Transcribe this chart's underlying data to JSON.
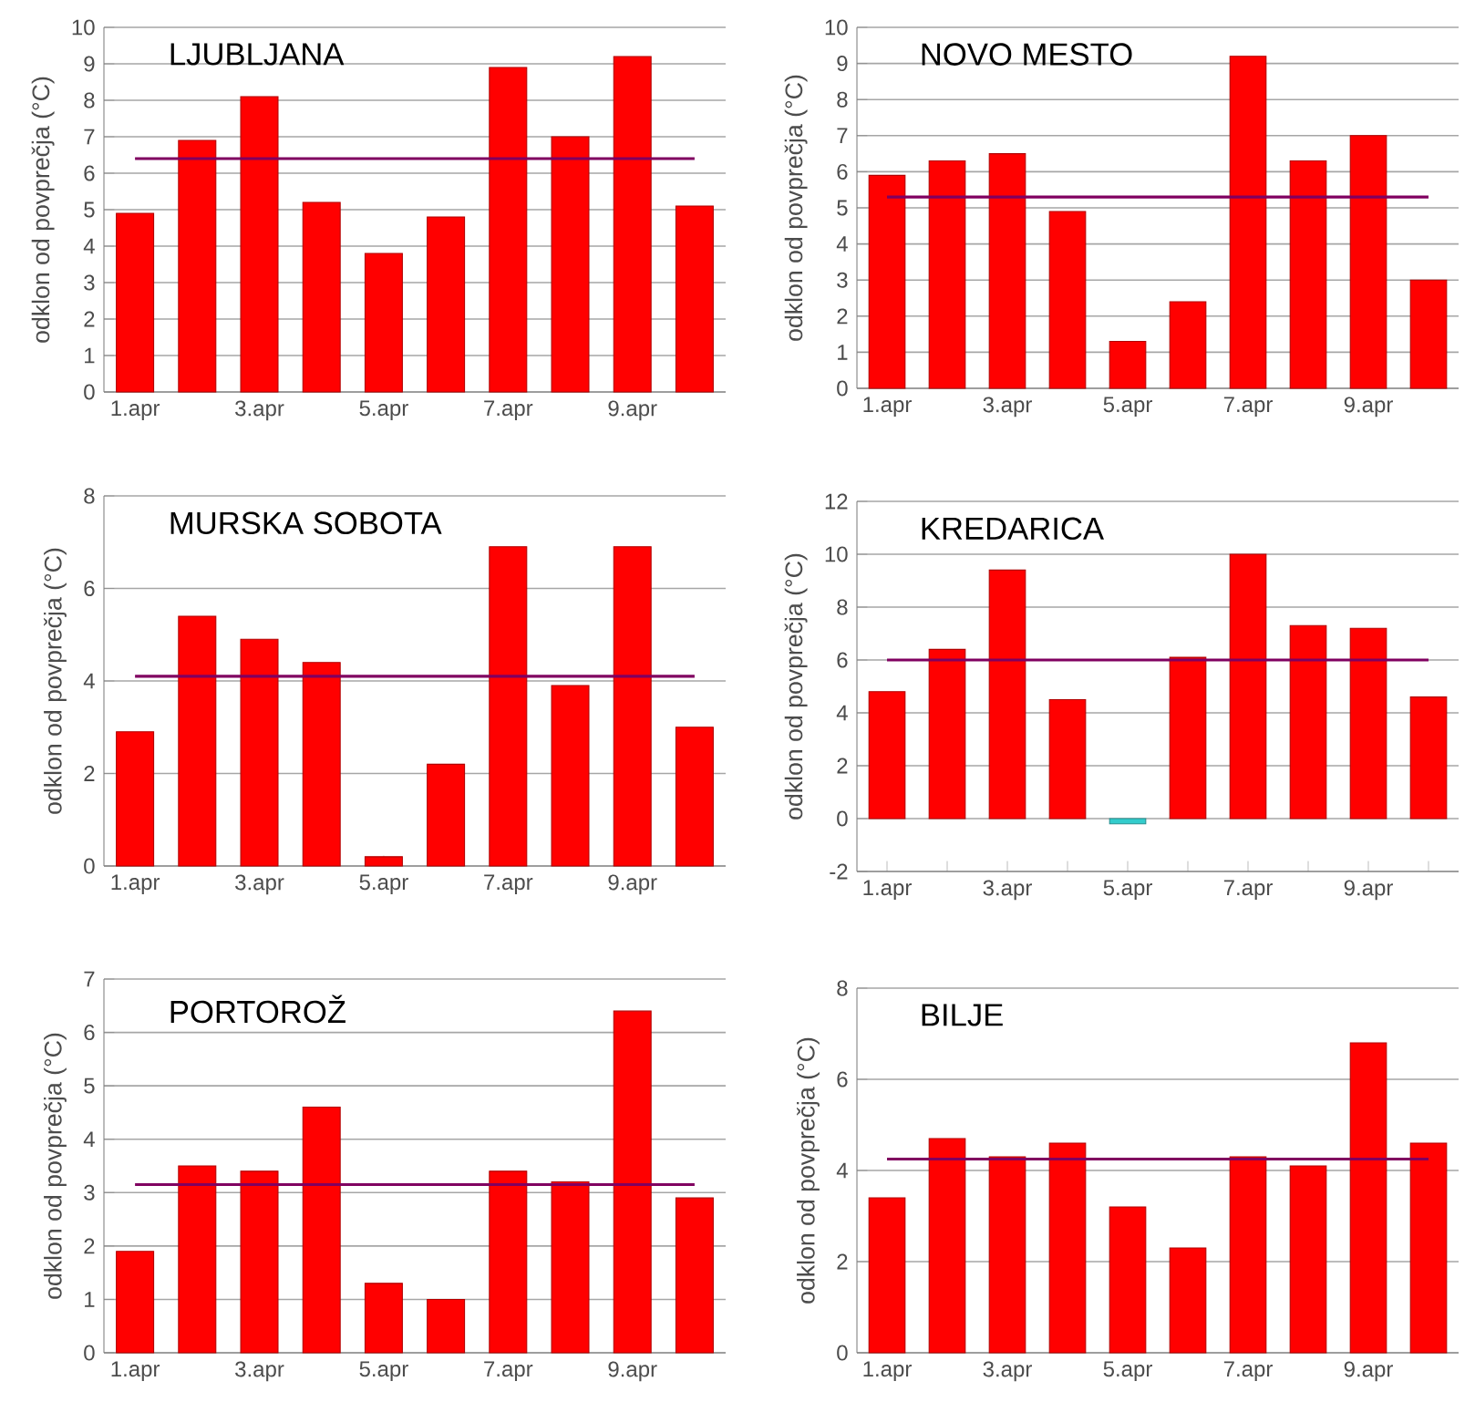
{
  "chart_data": [
    {
      "type": "bar",
      "title": "LJUBLJANA",
      "ylabel": "odklon od povprečja (°C)",
      "categories": [
        "1.apr",
        null,
        "3.apr",
        null,
        "5.apr",
        null,
        "7.apr",
        null,
        "9.apr",
        null
      ],
      "values": [
        4.9,
        6.9,
        8.1,
        5.2,
        3.8,
        4.8,
        8.9,
        7.0,
        9.2,
        5.1
      ],
      "color": "#ff0000",
      "ylim": [
        0,
        10
      ],
      "yticks": [
        0,
        1,
        2,
        3,
        4,
        5,
        6,
        7,
        8,
        9,
        10
      ],
      "grid": "y",
      "ref_lines": [
        {
          "axis": "y",
          "value": 6.4,
          "color": "#800060"
        }
      ]
    },
    {
      "type": "bar",
      "title": "NOVO MESTO",
      "ylabel": "odklon od povprečja (°C)",
      "categories": [
        "1.apr",
        null,
        "3.apr",
        null,
        "5.apr",
        null,
        "7.apr",
        null,
        "9.apr",
        null
      ],
      "values": [
        5.9,
        6.3,
        6.5,
        4.9,
        1.3,
        2.4,
        9.2,
        6.3,
        7.0,
        3.0
      ],
      "color": "#ff0000",
      "ylim": [
        0,
        10
      ],
      "yticks": [
        0,
        1,
        2,
        3,
        4,
        5,
        6,
        7,
        8,
        9,
        10
      ],
      "grid": "y",
      "ref_lines": [
        {
          "axis": "y",
          "value": 5.3,
          "color": "#800060"
        }
      ]
    },
    {
      "type": "bar",
      "title": "MURSKA SOBOTA",
      "ylabel": "odklon od povprečja (°C)",
      "categories": [
        "1.apr",
        null,
        "3.apr",
        null,
        "5.apr",
        null,
        "7.apr",
        null,
        "9.apr",
        null
      ],
      "values": [
        2.9,
        5.4,
        4.9,
        4.4,
        0.2,
        2.2,
        6.9,
        3.9,
        6.9,
        3.0
      ],
      "color": "#ff0000",
      "ylim": [
        0,
        8
      ],
      "yticks": [
        0,
        2,
        4,
        6,
        8
      ],
      "grid": "y",
      "ref_lines": [
        {
          "axis": "y",
          "value": 4.1,
          "color": "#800060"
        }
      ]
    },
    {
      "type": "bar",
      "title": "KREDARICA",
      "ylabel": "odklon od povprečja (°C)",
      "categories": [
        "1.apr",
        null,
        "3.apr",
        null,
        "5.apr",
        null,
        "7.apr",
        null,
        "9.apr",
        null
      ],
      "values": [
        4.8,
        6.4,
        9.4,
        4.5,
        -0.2,
        6.1,
        10.0,
        7.3,
        7.2,
        4.6
      ],
      "colors": [
        "#ff0000",
        "#ff0000",
        "#ff0000",
        "#ff0000",
        "#33cccc",
        "#ff0000",
        "#ff0000",
        "#ff0000",
        "#ff0000",
        "#ff0000"
      ],
      "ylim": [
        -2,
        12
      ],
      "yticks": [
        -2,
        0,
        2,
        4,
        6,
        8,
        10,
        12
      ],
      "grid": "y",
      "ref_lines": [
        {
          "axis": "y",
          "value": 6.0,
          "color": "#800060"
        }
      ]
    },
    {
      "type": "bar",
      "title": "PORTOROŽ",
      "ylabel": "odklon od povprečja (°C)",
      "categories": [
        "1.apr",
        null,
        "3.apr",
        null,
        "5.apr",
        null,
        "7.apr",
        null,
        "9.apr",
        null
      ],
      "values": [
        1.9,
        3.5,
        3.4,
        4.6,
        1.3,
        1.0,
        3.4,
        3.2,
        6.4,
        2.9
      ],
      "color": "#ff0000",
      "ylim": [
        0,
        7
      ],
      "yticks": [
        0,
        1,
        2,
        3,
        4,
        5,
        6,
        7
      ],
      "grid": "y",
      "ref_lines": [
        {
          "axis": "y",
          "value": 3.15,
          "color": "#800060"
        }
      ]
    },
    {
      "type": "bar",
      "title": "BILJE",
      "ylabel": "odklon od povprečja (°C)",
      "categories": [
        "1.apr",
        null,
        "3.apr",
        null,
        "5.apr",
        null,
        "7.apr",
        null,
        "9.apr",
        null
      ],
      "values": [
        3.4,
        4.7,
        4.3,
        4.6,
        3.2,
        2.3,
        4.3,
        4.1,
        6.8,
        4.6
      ],
      "color": "#ff0000",
      "ylim": [
        0,
        8
      ],
      "yticks": [
        0,
        2,
        4,
        6,
        8
      ],
      "grid": "y",
      "ref_lines": [
        {
          "axis": "y",
          "value": 4.25,
          "color": "#800060"
        }
      ]
    }
  ]
}
